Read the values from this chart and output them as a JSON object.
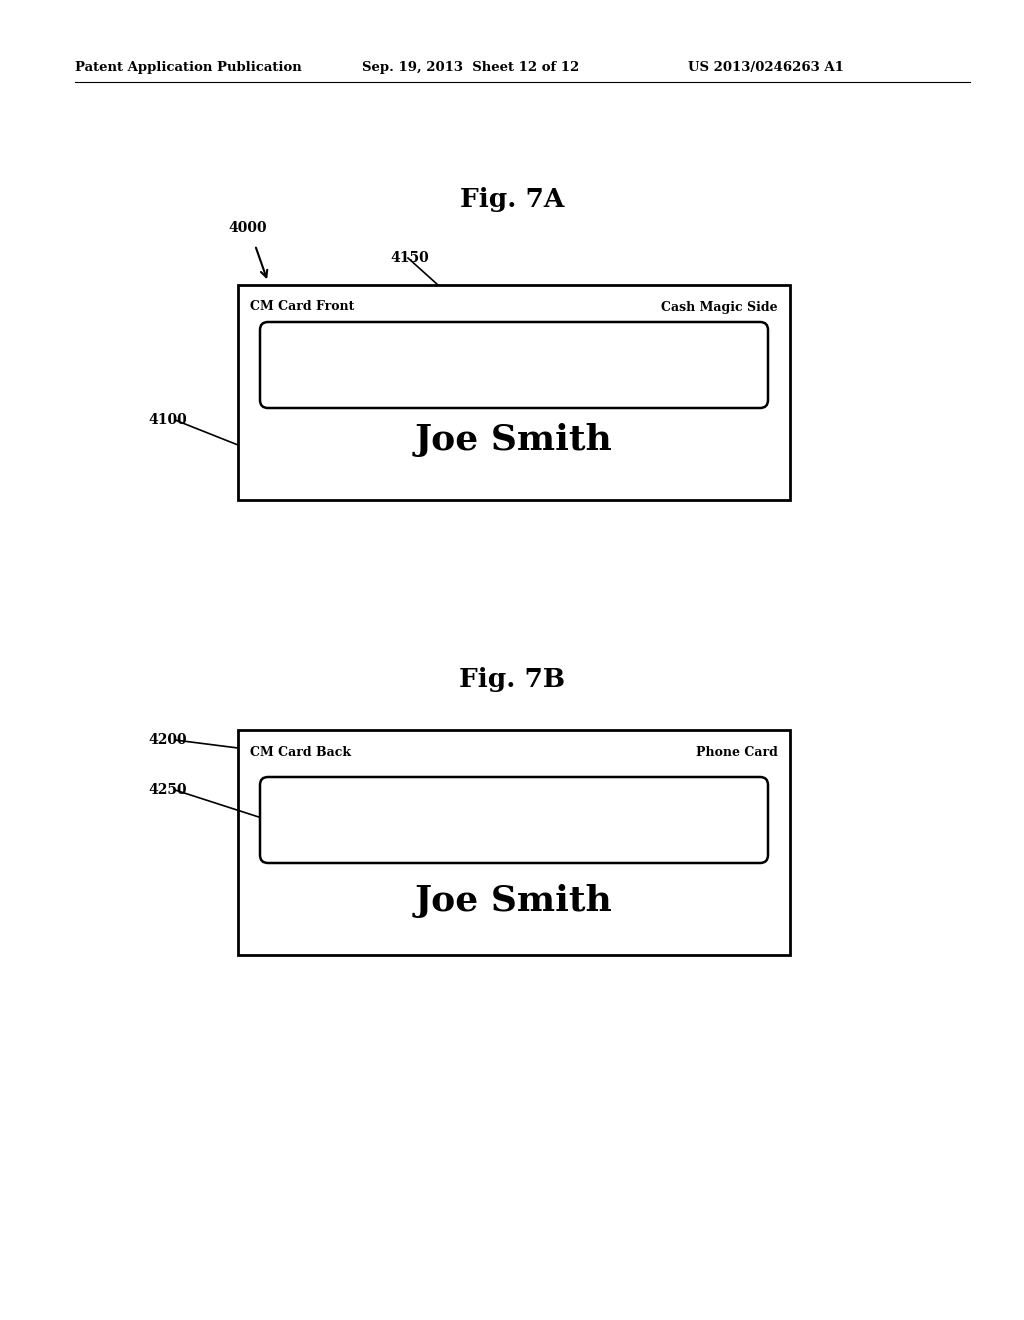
{
  "bg_color": "#ffffff",
  "header_text": "Patent Application Publication",
  "header_date": "Sep. 19, 2013  Sheet 12 of 12",
  "header_patent": "US 2013/0246263 A1",
  "fig7a_title": "Fig. 7A",
  "fig7b_title": "Fig. 7B",
  "fig7a_label4000": "4000",
  "fig7a_label4150": "4150",
  "fig7a_label4100": "4100",
  "fig7a_card_label_left": "CM Card Front",
  "fig7a_card_label_right": "Cash Magic Side",
  "fig7a_name": "Joe Smith",
  "fig7b_label4200": "4200",
  "fig7b_label4250": "4250",
  "fig7b_card_label_left": "CM Card Back",
  "fig7b_card_label_right": "Phone Card",
  "fig7b_name": "Joe Smith",
  "text_color": "#000000"
}
